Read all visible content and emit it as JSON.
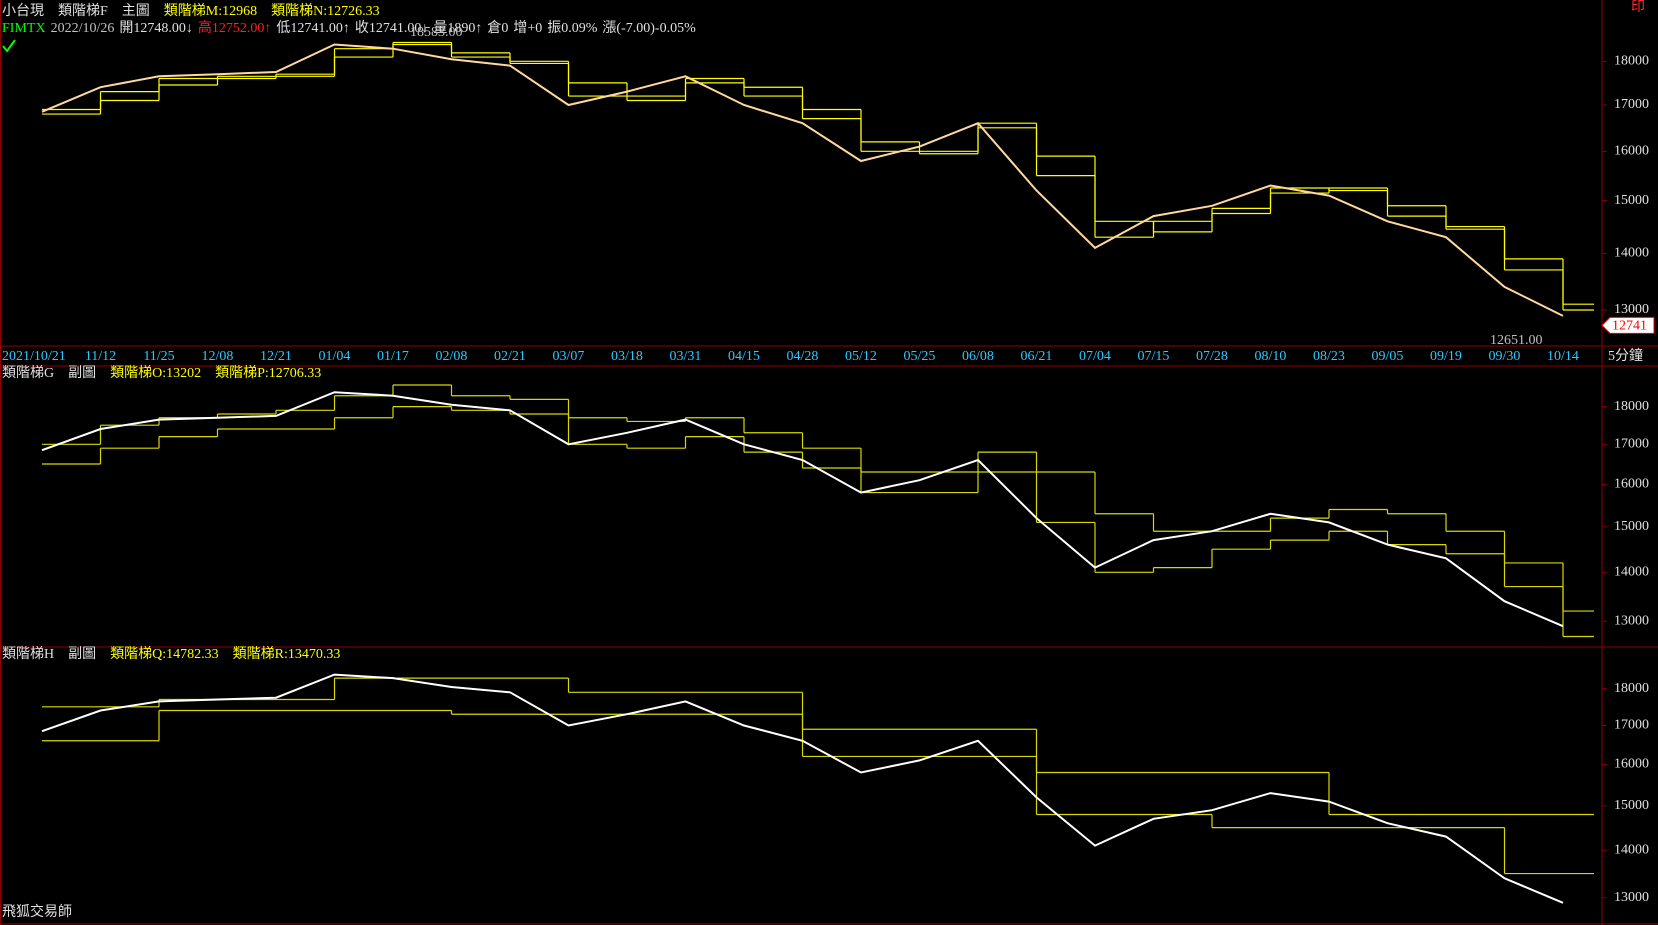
{
  "toolbar": {
    "print": "印"
  },
  "footer": {
    "brand": "飛狐交易師"
  },
  "chart_data": [
    {
      "type": "line",
      "log_scale": true,
      "header": [
        [
          {
            "text": "小台現",
            "color": "#e0e0e0"
          },
          {
            "text": "類階梯F",
            "color": "#e0e0e0"
          },
          {
            "text": "主圖",
            "color": "#e0e0e0"
          },
          {
            "text": "類階梯M:12968",
            "color": "#ffff00"
          },
          {
            "text": "類階梯N:12726.33",
            "color": "#ffff00"
          }
        ],
        [
          {
            "text": "FIMTX",
            "color": "#00ff00"
          },
          {
            "text": "2022/10/26",
            "color": "#c0c0c0"
          },
          {
            "text": "開12748.00↓",
            "color": "#e0e0e0"
          },
          {
            "text": "高12752.00↑",
            "color": "#ff2020"
          },
          {
            "text": "低12741.00↑",
            "color": "#e0e0e0"
          },
          {
            "text": "收12741.00↓",
            "color": "#e0e0e0"
          },
          {
            "text": "量1890↑",
            "color": "#e0e0e0"
          },
          {
            "text": "倉0",
            "color": "#e0e0e0"
          },
          {
            "text": "增+0",
            "color": "#e0e0e0"
          },
          {
            "text": "振0.09%",
            "color": "#e0e0e0"
          },
          {
            "text": "漲(-7.00)-0.05%",
            "color": "#e0e0e0"
          }
        ]
      ],
      "categories": [
        "2021/10/21",
        "11/12",
        "11/25",
        "12/08",
        "12/21",
        "01/04",
        "01/17",
        "02/08",
        "02/21",
        "03/07",
        "03/18",
        "03/31",
        "04/15",
        "04/28",
        "05/12",
        "05/25",
        "06/08",
        "06/21",
        "07/04",
        "07/15",
        "07/28",
        "08/10",
        "08/23",
        "09/05",
        "09/19",
        "09/30",
        "10/14"
      ],
      "x_unit": "5分鐘",
      "ylim": [
        12500,
        19000
      ],
      "yticks": [
        13000,
        14000,
        15000,
        16000,
        17000,
        18000
      ],
      "annotations": [
        {
          "value": 18583,
          "label": "18583.00"
        },
        {
          "value": 12651,
          "label": "12651.00"
        }
      ],
      "last_price": {
        "value": 12741,
        "label": "12741"
      },
      "series": [
        {
          "name": "類階梯M",
          "color": "#ffff00",
          "step": true,
          "values": [
            16900,
            17300,
            17600,
            17650,
            17700,
            18300,
            18400,
            18100,
            17950,
            17200,
            17200,
            17600,
            17200,
            16700,
            16000,
            16000,
            16600,
            15500,
            14300,
            14600,
            14850,
            15250,
            15200,
            14700,
            14450,
            13700,
            13000
          ]
        },
        {
          "name": "類階梯N",
          "color": "#ffff00",
          "step": true,
          "values": [
            16800,
            17100,
            17450,
            17600,
            17650,
            18100,
            18450,
            18200,
            18000,
            17500,
            17100,
            17500,
            17400,
            16900,
            16200,
            15950,
            16500,
            15900,
            14600,
            14400,
            14750,
            15150,
            15250,
            14900,
            14500,
            13900,
            13100
          ]
        },
        {
          "name": "小台現",
          "color": "#ffd8a0",
          "step": false,
          "values": [
            16850,
            17400,
            17650,
            17700,
            17750,
            18400,
            18300,
            18050,
            17900,
            17000,
            17300,
            17650,
            17000,
            16600,
            15800,
            16100,
            16600,
            15200,
            14100,
            14700,
            14900,
            15300,
            15100,
            14600,
            14300,
            13400,
            12900
          ]
        }
      ]
    },
    {
      "type": "line",
      "log_scale": true,
      "header": [
        [
          {
            "text": "類階梯G",
            "color": "#e0e0e0"
          },
          {
            "text": "副圖",
            "color": "#e0e0e0"
          },
          {
            "text": "類階梯O:13202",
            "color": "#ffff00"
          },
          {
            "text": "類階梯P:12706.33",
            "color": "#ffff00"
          }
        ]
      ],
      "ylim": [
        12500,
        19000
      ],
      "yticks": [
        13000,
        14000,
        15000,
        16000,
        17000,
        18000
      ],
      "series": [
        {
          "name": "類階梯O",
          "color": "#d8d800",
          "step": true,
          "values": [
            17000,
            17500,
            17700,
            17800,
            17900,
            18300,
            18600,
            18300,
            18200,
            17700,
            17600,
            17700,
            17300,
            16900,
            16300,
            16300,
            16800,
            16300,
            15300,
            14900,
            14900,
            15200,
            15400,
            15300,
            14900,
            14200,
            13200
          ]
        },
        {
          "name": "類階梯P",
          "color": "#d8d800",
          "step": true,
          "values": [
            16500,
            16900,
            17200,
            17400,
            17400,
            17700,
            18000,
            17900,
            17800,
            17000,
            16900,
            17200,
            16800,
            16400,
            15800,
            15800,
            16300,
            15100,
            14000,
            14100,
            14500,
            14700,
            14900,
            14600,
            14400,
            13700,
            12700
          ]
        },
        {
          "name": "類階梯G",
          "color": "#ffffff",
          "step": false,
          "values": [
            16850,
            17400,
            17650,
            17700,
            17750,
            18400,
            18300,
            18050,
            17900,
            17000,
            17300,
            17650,
            17000,
            16600,
            15800,
            16100,
            16600,
            15200,
            14100,
            14700,
            14900,
            15300,
            15100,
            14600,
            14300,
            13400,
            12900
          ]
        }
      ]
    },
    {
      "type": "line",
      "log_scale": true,
      "header": [
        [
          {
            "text": "類階梯H",
            "color": "#e0e0e0"
          },
          {
            "text": "副圖",
            "color": "#e0e0e0"
          },
          {
            "text": "類階梯Q:14782.33",
            "color": "#ffff00"
          },
          {
            "text": "類階梯R:13470.33",
            "color": "#ffff00"
          }
        ]
      ],
      "ylim": [
        12500,
        19000
      ],
      "yticks": [
        13000,
        14000,
        15000,
        16000,
        17000,
        18000
      ],
      "series": [
        {
          "name": "類階梯Q",
          "color": "#d8d800",
          "step": true,
          "values": [
            17500,
            17500,
            17700,
            17700,
            17700,
            18300,
            18300,
            18300,
            18300,
            17900,
            17900,
            17900,
            17900,
            16900,
            16900,
            16900,
            16900,
            15800,
            15800,
            15800,
            15800,
            15800,
            14800,
            14800,
            14800,
            14800,
            14800
          ]
        },
        {
          "name": "類階梯R",
          "color": "#d8d800",
          "step": true,
          "values": [
            16600,
            16600,
            17400,
            17400,
            17400,
            17400,
            17400,
            17300,
            17300,
            17300,
            17300,
            17300,
            17300,
            16200,
            16200,
            16200,
            16200,
            14800,
            14800,
            14800,
            14500,
            14500,
            14500,
            14500,
            14500,
            13500,
            13500
          ]
        },
        {
          "name": "類階梯H",
          "color": "#ffffff",
          "step": false,
          "values": [
            16850,
            17400,
            17650,
            17700,
            17750,
            18400,
            18300,
            18050,
            17900,
            17000,
            17300,
            17650,
            17000,
            16600,
            15800,
            16100,
            16600,
            15200,
            14100,
            14700,
            14900,
            15300,
            15100,
            14600,
            14300,
            13400,
            12900
          ]
        }
      ]
    }
  ]
}
